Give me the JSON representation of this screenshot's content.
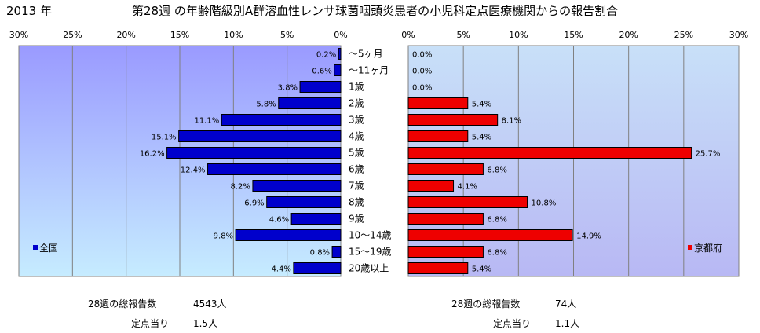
{
  "year": "2013 年",
  "title": "第28週 の年齢階級別A群溶血性レンサ球菌咽頭炎患者の小児科定点医療機関からの報告割合",
  "chart_data": {
    "type": "bar",
    "orientation": "horizontal",
    "categories": [
      "～5ヶ月",
      "～11ヶ月",
      "1歳",
      "2歳",
      "3歳",
      "4歳",
      "5歳",
      "6歳",
      "7歳",
      "8歳",
      "9歳",
      "10～14歳",
      "15～19歳",
      "20歳以上"
    ],
    "xlim": [
      0,
      30
    ],
    "tick_values": [
      30,
      25,
      20,
      15,
      10,
      5,
      0
    ],
    "tick_labels": [
      "30%",
      "25%",
      "20%",
      "15%",
      "10%",
      "5%",
      "0%"
    ],
    "grid": true,
    "series": [
      {
        "name": "全国",
        "color": "#0000cc",
        "values": [
          0.2,
          0.6,
          3.8,
          5.8,
          11.1,
          15.1,
          16.2,
          12.4,
          8.2,
          6.9,
          4.6,
          9.8,
          0.8,
          4.4
        ],
        "labels": [
          "0.2%",
          "0.6%",
          "3.8%",
          "5.8%",
          "11.1%",
          "15.1%",
          "16.2%",
          "12.4%",
          "8.2%",
          "6.9%",
          "4.6%",
          "9.8%",
          "0.8%",
          "4.4%"
        ],
        "legend_position": "bottom-left"
      },
      {
        "name": "京都府",
        "color": "#ee0000",
        "values": [
          0.0,
          0.0,
          0.0,
          5.4,
          8.1,
          5.4,
          25.7,
          6.8,
          4.1,
          10.8,
          6.8,
          14.9,
          6.8,
          5.4
        ],
        "labels": [
          "0.0%",
          "0.0%",
          "0.0%",
          "5.4%",
          "8.1%",
          "5.4%",
          "25.7%",
          "6.8%",
          "4.1%",
          "10.8%",
          "6.8%",
          "14.9%",
          "6.8%",
          "5.4%"
        ],
        "legend_position": "bottom-right"
      }
    ]
  },
  "left_panel_colors": {
    "top": "#9a9aff",
    "bottom": "#c6ecff"
  },
  "right_panel_colors": {
    "top": "#c8e0f8",
    "bottom": "#b8b8f4"
  },
  "footer": {
    "national": {
      "total_label": "28週の総報告数",
      "total_value": "4543人",
      "per_label": "定点当り",
      "per_value": "1.5人"
    },
    "kyoto": {
      "total_label": "28週の総報告数",
      "total_value": "74人",
      "per_label": "定点当り",
      "per_value": "1.1人"
    }
  }
}
